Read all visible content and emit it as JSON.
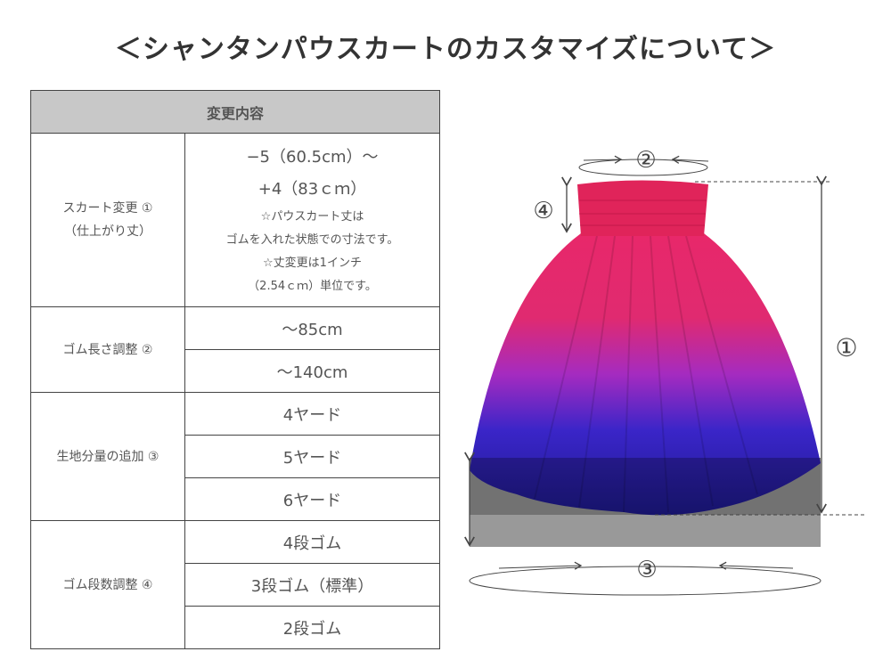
{
  "title": "＜シャンタンパウスカートのカスタマイズについて＞",
  "table": {
    "header": "変更内容",
    "groups": [
      {
        "label_lines": [
          "スカート変更 ①",
          "（仕上がり丈）"
        ],
        "value_lines_big": [
          "−5（60.5cm）～",
          "+4（83ｃｍ）"
        ],
        "value_lines_small": [
          "☆パウスカート丈は",
          "ゴムを入れた状態での寸法です。",
          "☆丈変更は1インチ",
          "（2.54ｃｍ）単位です。"
        ]
      },
      {
        "label": "ゴム長さ調整 ②",
        "options": [
          "～85cm",
          "～140cm"
        ]
      },
      {
        "label": "生地分量の追加 ③",
        "options": [
          "4ヤード",
          "5ヤード",
          "6ヤード"
        ]
      },
      {
        "label": "ゴム段数調整 ④",
        "options": [
          "4段ゴム",
          "3段ゴム（標準）",
          "2段ゴム"
        ]
      }
    ]
  },
  "figure": {
    "markers": [
      "①",
      "②",
      "③",
      "④"
    ],
    "colors": {
      "waist": "#e0245a",
      "top": "#e8286a",
      "middle": "#a52bc0",
      "bottom": "#2a1fb0",
      "overlay": "#999999"
    }
  }
}
